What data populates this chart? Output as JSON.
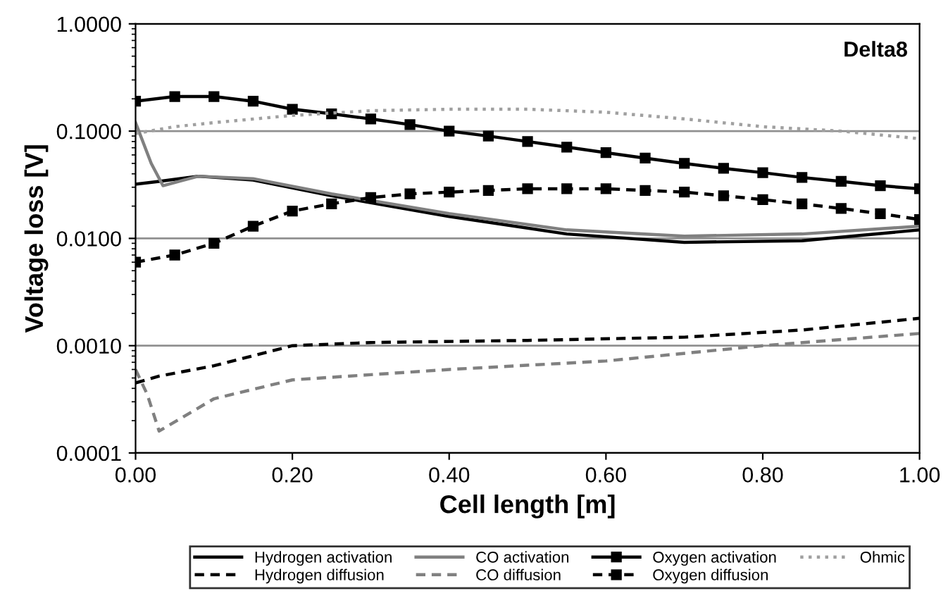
{
  "chart_data": {
    "type": "line",
    "xlabel": "Cell length [m]",
    "ylabel": "Voltage loss [V]",
    "log": "y",
    "grid": "y",
    "legend": "bottom",
    "annotations": [
      "Delta8"
    ],
    "xlim": [
      0,
      1
    ],
    "xticks": [
      {
        "value": 0,
        "label": "0.00"
      },
      {
        "value": 0.2,
        "label": "0.20"
      },
      {
        "value": 0.4,
        "label": "0.40"
      },
      {
        "value": 0.6,
        "label": "0.60"
      },
      {
        "value": 0.8,
        "label": "0.80"
      },
      {
        "value": 1,
        "label": "1.00"
      }
    ],
    "ylim": [
      0.0001,
      1
    ],
    "yticks": [
      {
        "value": 0.0001,
        "label": "0.0001"
      },
      {
        "value": 0.001,
        "label": "0.0010"
      },
      {
        "value": 0.01,
        "label": "0.0100"
      },
      {
        "value": 0.1,
        "label": "0.1000"
      },
      {
        "value": 1,
        "label": "1.0000"
      }
    ],
    "series": [
      {
        "name": "Hydrogen activation",
        "color": "#000000",
        "line_style": "solid",
        "marker": "none",
        "x": [
          0,
          0.03,
          0.08,
          0.15,
          0.25,
          0.4,
          0.55,
          0.7,
          0.85,
          1.0
        ],
        "values": [
          0.032,
          0.034,
          0.038,
          0.035,
          0.025,
          0.016,
          0.011,
          0.0092,
          0.0095,
          0.012
        ]
      },
      {
        "name": "Hydrogen diffusion",
        "color": "#000000",
        "line_style": "dashed",
        "marker": "none",
        "x": [
          0,
          0.03,
          0.1,
          0.2,
          0.3,
          0.5,
          0.7,
          0.85,
          1.0
        ],
        "values": [
          0.00045,
          0.00052,
          0.00065,
          0.001,
          0.00107,
          0.00112,
          0.0012,
          0.0014,
          0.0018
        ]
      },
      {
        "name": "CO activation",
        "color": "#808080",
        "line_style": "solid",
        "marker": "none",
        "x": [
          0,
          0.02,
          0.035,
          0.08,
          0.15,
          0.25,
          0.4,
          0.55,
          0.7,
          0.85,
          1.0
        ],
        "values": [
          0.12,
          0.05,
          0.031,
          0.038,
          0.036,
          0.026,
          0.017,
          0.012,
          0.0105,
          0.011,
          0.013
        ]
      },
      {
        "name": "CO diffusion",
        "color": "#808080",
        "line_style": "dashed",
        "marker": "none",
        "x": [
          0,
          0.015,
          0.03,
          0.1,
          0.2,
          0.4,
          0.6,
          0.8,
          1.0
        ],
        "values": [
          0.0006,
          0.00035,
          0.00016,
          0.00032,
          0.00048,
          0.0006,
          0.00072,
          0.001,
          0.0013
        ]
      },
      {
        "name": "Oxygen activation",
        "color": "#000000",
        "line_style": "solid",
        "marker": "square",
        "x": [
          0,
          0.05,
          0.1,
          0.15,
          0.2,
          0.25,
          0.3,
          0.35,
          0.4,
          0.45,
          0.5,
          0.55,
          0.6,
          0.65,
          0.7,
          0.75,
          0.8,
          0.85,
          0.9,
          0.95,
          1.0
        ],
        "values": [
          0.19,
          0.21,
          0.21,
          0.19,
          0.16,
          0.145,
          0.13,
          0.115,
          0.1,
          0.09,
          0.08,
          0.071,
          0.063,
          0.056,
          0.05,
          0.045,
          0.041,
          0.037,
          0.034,
          0.031,
          0.029
        ]
      },
      {
        "name": "Oxygen diffusion",
        "color": "#000000",
        "line_style": "dashed",
        "marker": "square",
        "x": [
          0,
          0.05,
          0.1,
          0.15,
          0.2,
          0.25,
          0.3,
          0.35,
          0.4,
          0.45,
          0.5,
          0.55,
          0.6,
          0.65,
          0.7,
          0.75,
          0.8,
          0.85,
          0.9,
          0.95,
          1.0
        ],
        "values": [
          0.006,
          0.007,
          0.009,
          0.013,
          0.018,
          0.021,
          0.024,
          0.026,
          0.027,
          0.028,
          0.029,
          0.029,
          0.029,
          0.028,
          0.027,
          0.025,
          0.023,
          0.021,
          0.019,
          0.017,
          0.015
        ]
      },
      {
        "name": "Ohmic",
        "color": "#a0a0a0",
        "line_style": "dotted",
        "marker": "none",
        "x": [
          0,
          0.05,
          0.1,
          0.2,
          0.3,
          0.4,
          0.5,
          0.6,
          0.7,
          0.8,
          0.9,
          1.0
        ],
        "values": [
          0.095,
          0.11,
          0.12,
          0.14,
          0.155,
          0.16,
          0.16,
          0.15,
          0.13,
          0.11,
          0.1,
          0.085
        ]
      }
    ]
  }
}
